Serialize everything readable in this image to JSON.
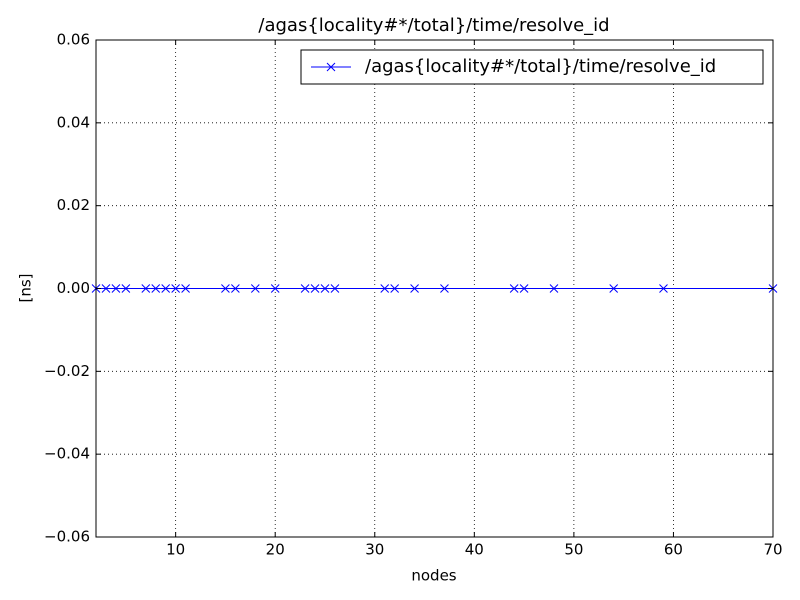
{
  "chart_data": {
    "type": "line",
    "title": "/agas{locality#*/total}/time/resolve_id",
    "x_label": "nodes",
    "y_label": "[ns]",
    "x": [
      2,
      3,
      4,
      5,
      7,
      8,
      9,
      10,
      11,
      15,
      16,
      18,
      20,
      23,
      24,
      25,
      26,
      31,
      32,
      34,
      37,
      44,
      45,
      48,
      54,
      59,
      70
    ],
    "series": [
      {
        "name": "/agas{locality#*/total}/time/resolve_id",
        "color": "#0000ff",
        "marker": "x",
        "values": [
          0,
          0,
          0,
          0,
          0,
          0,
          0,
          0,
          0,
          0,
          0,
          0,
          0,
          0,
          0,
          0,
          0,
          0,
          0,
          0,
          0,
          0,
          0,
          0,
          0,
          0,
          0
        ]
      }
    ],
    "xlim": [
      2,
      70
    ],
    "xticks": [
      10,
      20,
      30,
      40,
      50,
      60,
      70
    ],
    "ylim": [
      -0.06,
      0.06
    ],
    "yticks": [
      {
        "value": -0.06,
        "label": "−0.06"
      },
      {
        "value": -0.04,
        "label": "−0.04"
      },
      {
        "value": -0.02,
        "label": "−0.02"
      },
      {
        "value": 0,
        "label": "0.00"
      },
      {
        "value": 0.02,
        "label": "0.02"
      },
      {
        "value": 0.04,
        "label": "0.04"
      },
      {
        "value": 0.06,
        "label": "0.06"
      }
    ],
    "grid": true,
    "legend": "upper right"
  }
}
